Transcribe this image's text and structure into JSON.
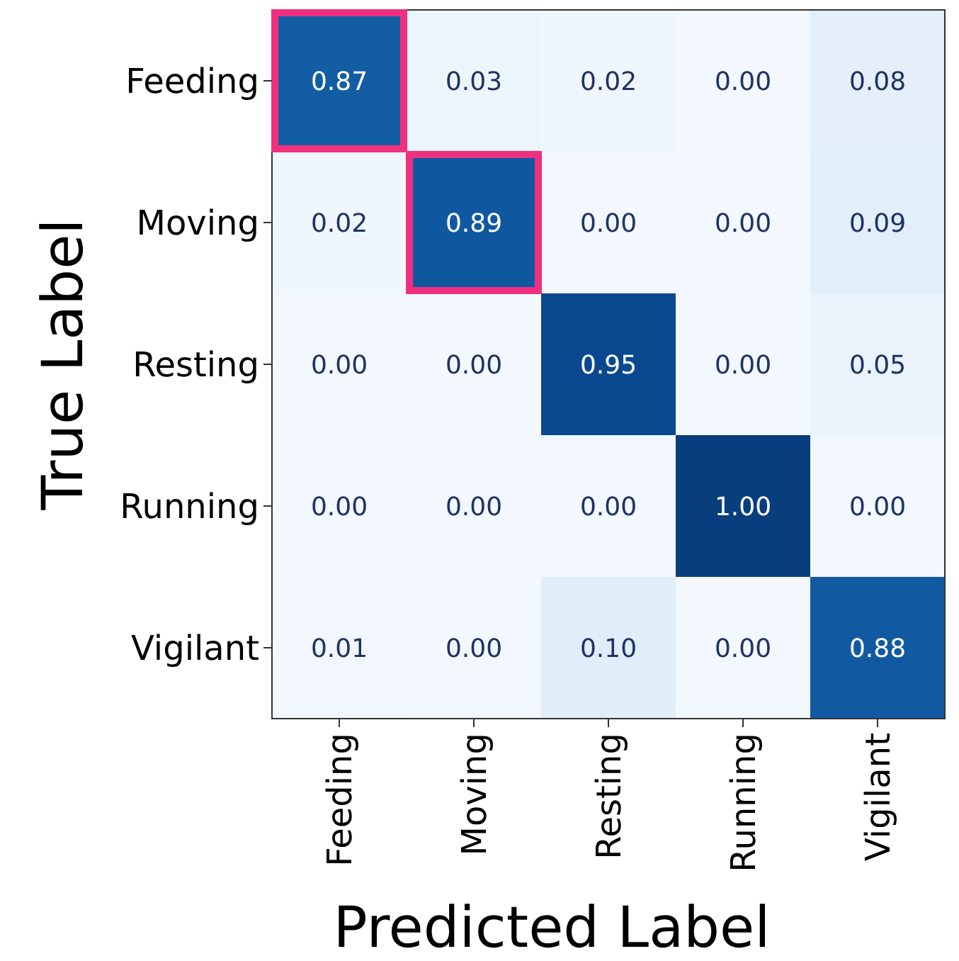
{
  "chart_data": {
    "type": "heatmap",
    "xlabel": "Predicted Label",
    "ylabel": "True Label",
    "categories": [
      "Feeding",
      "Moving",
      "Resting",
      "Running",
      "Vigilant"
    ],
    "y_categories": [
      "Feeding",
      "Moving",
      "Resting",
      "Running",
      "Vigilant"
    ],
    "cells": [
      [
        0.87,
        0.03,
        0.02,
        0.0,
        0.08
      ],
      [
        0.02,
        0.89,
        0.0,
        0.0,
        0.09
      ],
      [
        0.0,
        0.0,
        0.95,
        0.0,
        0.05
      ],
      [
        0.0,
        0.0,
        0.0,
        1.0,
        0.0
      ],
      [
        0.01,
        0.0,
        0.1,
        0.0,
        0.88
      ]
    ],
    "cell_labels": [
      [
        "0.87",
        "0.03",
        "0.02",
        "0.00",
        "0.08"
      ],
      [
        "0.02",
        "0.89",
        "0.00",
        "0.00",
        "0.09"
      ],
      [
        "0.00",
        "0.00",
        "0.95",
        "0.00",
        "0.05"
      ],
      [
        "0.00",
        "0.00",
        "0.00",
        "1.00",
        "0.00"
      ],
      [
        "0.01",
        "0.00",
        "0.10",
        "0.00",
        "0.88"
      ]
    ]
  }
}
